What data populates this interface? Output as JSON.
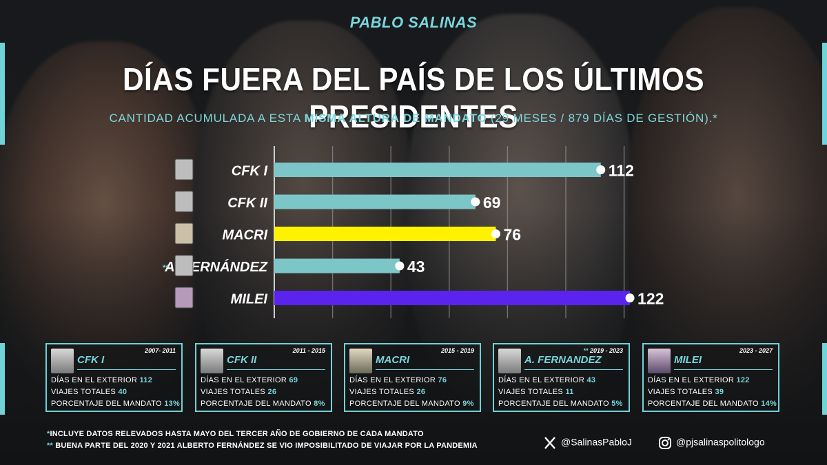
{
  "header": {
    "name": "PABLO SALINAS"
  },
  "title": "DÍAS FUERA DEL PAÍS DE LOS ÚLTIMOS PRESIDENTES",
  "subtitle": {
    "part1": "CANTIDAD ACUMULADA A ESTA ",
    "bold": "MISMA ALTURA DE MANDATO",
    "part2": " (29 MESES / 879 DÍAS DE GESTIÓN).*"
  },
  "colors": {
    "accent": "#6fd3d8",
    "bar_default": "#7cc6c8",
    "bar_macri": "#fff200",
    "bar_milei": "#5a23ee",
    "background": "#1b1d20"
  },
  "chart_data": {
    "type": "bar",
    "orientation": "horizontal",
    "categories": [
      "CFK I",
      "CFK II",
      "MACRI",
      "A. FERNÁNDEZ",
      "MILEI"
    ],
    "values": [
      112,
      69,
      76,
      43,
      122
    ],
    "category_markers": [
      "",
      "",
      "",
      "**",
      ""
    ],
    "bar_colors": [
      "#7cc6c8",
      "#7cc6c8",
      "#fff200",
      "#7cc6c8",
      "#5a23ee"
    ],
    "xlim": [
      0,
      125
    ],
    "grid": true
  },
  "cards": [
    {
      "name": "CFK I",
      "period": "2007- 2011",
      "period_marker": "",
      "photo": "cfk-photo",
      "dias_label": "DÍAS EN EL EXTERIOR",
      "dias": "112",
      "viajes_label": "VIAJES TOTALES",
      "viajes": "40",
      "pct_label": "PORCENTAJE DEL MANDATO",
      "pct": "13%"
    },
    {
      "name": "CFK II",
      "period": "2011 - 2015",
      "period_marker": "",
      "photo": "cfk-photo",
      "dias_label": "DÍAS EN EL EXTERIOR",
      "dias": "69",
      "viajes_label": "VIAJES TOTALES",
      "viajes": "26",
      "pct_label": "PORCENTAJE DEL MANDATO",
      "pct": "8%"
    },
    {
      "name": "MACRI",
      "period": "2015 - 2019",
      "period_marker": "",
      "photo": "macri-photo",
      "dias_label": "DÍAS EN EL EXTERIOR",
      "dias": "76",
      "viajes_label": "VIAJES TOTALES",
      "viajes": "26",
      "pct_label": "PORCENTAJE DEL MANDATO",
      "pct": "9%"
    },
    {
      "name": "A. FERNANDEZ",
      "period": "2019 - 2023",
      "period_marker": "**",
      "photo": "fernandez-photo",
      "dias_label": "DÍAS EN EL EXTERIOR",
      "dias": "43",
      "viajes_label": "VIAJES TOTALES",
      "viajes": "11",
      "pct_label": "PORCENTAJE DEL MANDATO",
      "pct": "5%"
    },
    {
      "name": "MILEI",
      "period": "2023 - 2027",
      "period_marker": "",
      "photo": "milei-photo",
      "dias_label": "DÍAS EN EL EXTERIOR",
      "dias": "122",
      "viajes_label": "VIAJES TOTALES",
      "viajes": "39",
      "pct_label": "PORCENTAJE DEL MANDATO",
      "pct": "14%"
    }
  ],
  "footnotes": {
    "note1_marker": "*",
    "note1": "INCLUYE DATOS RELEVADOS HASTA MAYO DEL TERCER AÑO DE GOBIERNO DE CADA MANDATO",
    "note2_marker": "**",
    "note2": " BUENA PARTE DEL 2020 Y 2021 ALBERTO FERNÁNDEZ SE VIO IMPOSIBILITADO DE VIAJAR POR LA PANDEMIA"
  },
  "social": {
    "x_icon": "x-logo-icon",
    "x_handle": "@SalinasPabloJ",
    "ig_icon": "instagram-icon",
    "ig_handle": "@pjsalinaspolitologo"
  }
}
